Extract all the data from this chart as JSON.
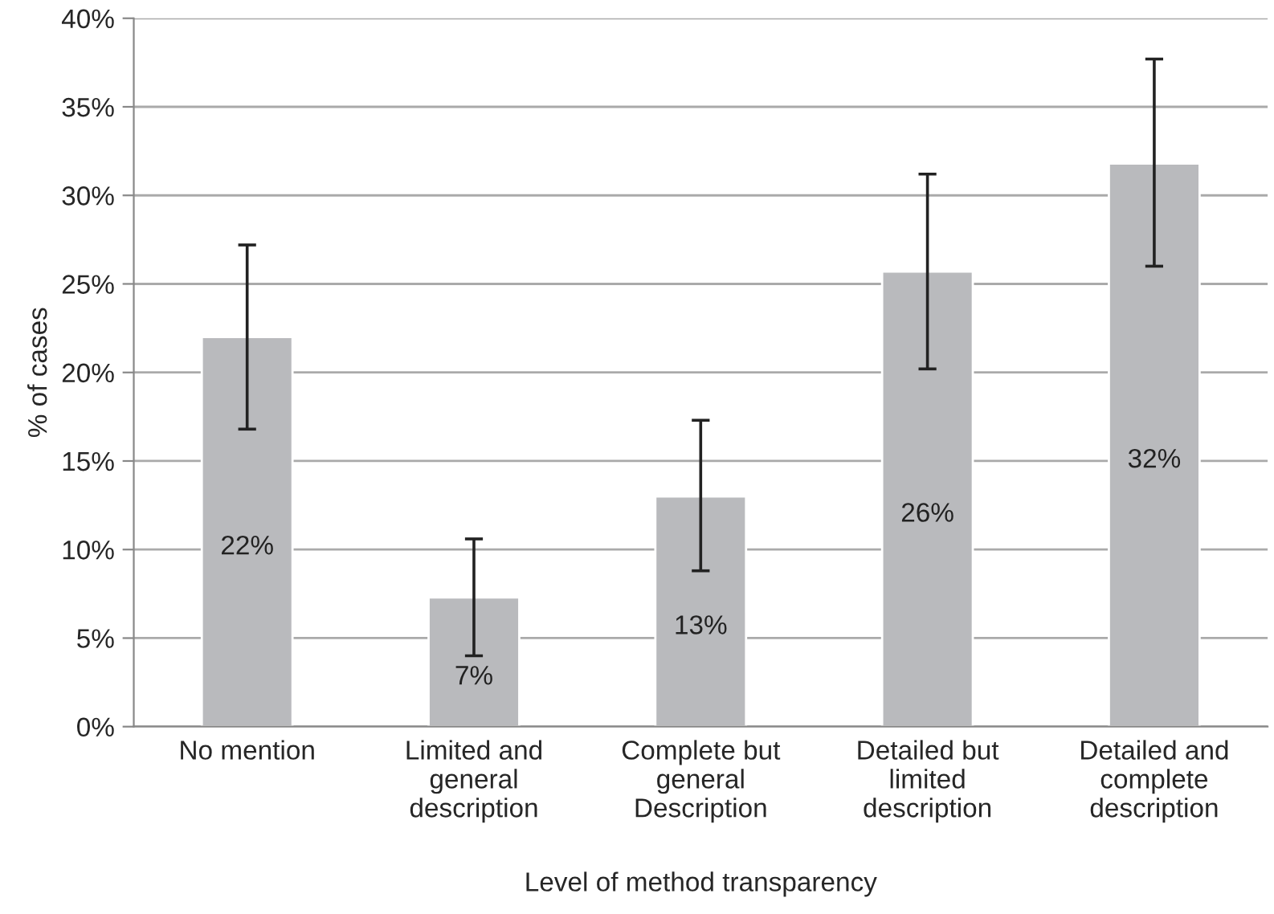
{
  "chart_data": {
    "type": "bar",
    "categories": [
      "No mention",
      "Limited and\ngeneral\ndescription",
      "Complete but\ngeneral\nDescription",
      "Detailed but\nlimited\ndescription",
      "Detailed and\ncomplete\ndescription"
    ],
    "values": [
      22.0,
      7.3,
      13.0,
      25.7,
      31.8
    ],
    "value_labels": [
      "22%",
      "7%",
      "13%",
      "26%",
      "32%"
    ],
    "errors": [
      [
        16.8,
        27.2
      ],
      [
        4.0,
        10.6
      ],
      [
        8.8,
        17.3
      ],
      [
        20.2,
        31.2
      ],
      [
        26.0,
        37.7
      ]
    ],
    "color": "#b9babd",
    "xlabel": "Level of method transparency",
    "ylabel": "% of cases",
    "ylim": [
      0,
      40
    ],
    "yticks": [
      {
        "value": 0,
        "label": "0%"
      },
      {
        "value": 5,
        "label": "5%"
      },
      {
        "value": 10,
        "label": "10%"
      },
      {
        "value": 15,
        "label": "15%"
      },
      {
        "value": 20,
        "label": "20%"
      },
      {
        "value": 25,
        "label": "25%"
      },
      {
        "value": 30,
        "label": "30%"
      },
      {
        "value": 35,
        "label": "35%"
      },
      {
        "value": 40,
        "label": "40%"
      }
    ],
    "grid": "y"
  }
}
